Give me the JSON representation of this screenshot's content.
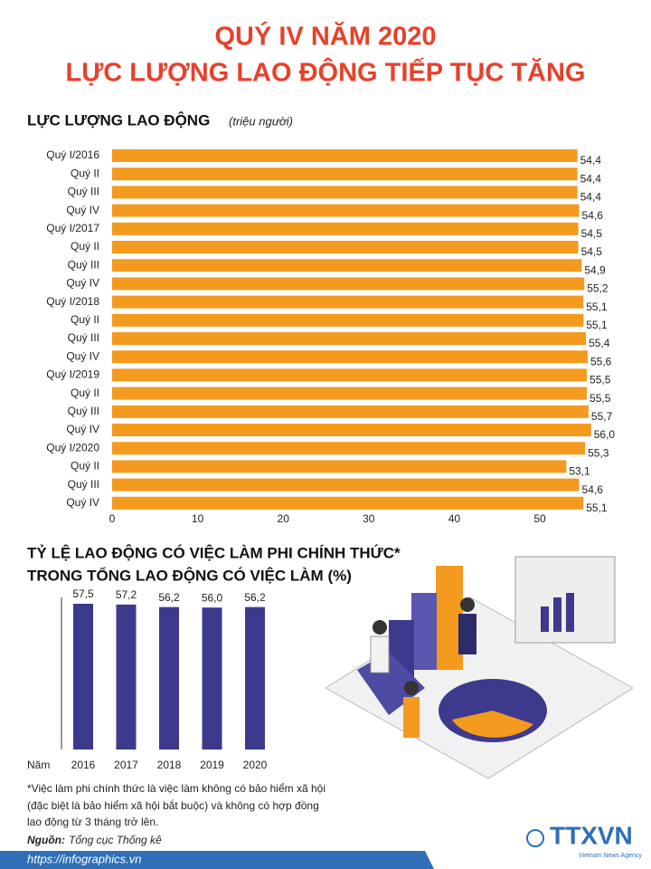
{
  "header": {
    "title_lines": [
      "QUÝ IV NĂM 2020",
      "LỰC LƯỢNG LAO ĐỘNG TIẾP TỤC TĂNG"
    ]
  },
  "chart_data": [
    {
      "type": "barh",
      "title": "LỰC LƯỢNG LAO ĐỘNG",
      "subtitle": "(triệu người)",
      "categories": [
        "Quý I/2016",
        "Quý II",
        "Quý III",
        "Quý IV",
        "Quý I/2017",
        "Quý II",
        "Quý III",
        "Quý IV",
        "Quý I/2018",
        "Quý II",
        "Quý III",
        "Quý IV",
        "Quý I/2019",
        "Quý II",
        "Quý III",
        "Quý IV",
        "Quý I/2020",
        "Quý II",
        "Quý III",
        "Quý IV"
      ],
      "values": [
        54.4,
        54.4,
        54.4,
        54.6,
        54.5,
        54.5,
        54.9,
        55.2,
        55.1,
        55.1,
        55.4,
        55.6,
        55.5,
        55.5,
        55.7,
        56.0,
        55.3,
        53.1,
        54.6,
        55.1
      ],
      "value_labels": [
        "54,4",
        "54,4",
        "54,4",
        "54,6",
        "54,5",
        "54,5",
        "54,9",
        "55,2",
        "55,1",
        "55,1",
        "55,4",
        "55,6",
        "55,5",
        "55,5",
        "55,7",
        "56,0",
        "55,3",
        "53,1",
        "54,6",
        "55,1"
      ],
      "color": "#f49a1f",
      "xlim": [
        0,
        60
      ],
      "xticks": [
        0,
        10,
        20,
        30,
        40,
        50
      ]
    },
    {
      "type": "bar",
      "title_lines": [
        "TỶ LỆ LAO ĐỘNG CÓ VIỆC LÀM PHI CHÍNH THỨC*",
        "TRONG TỔNG LAO ĐỘNG CÓ VIỆC LÀM (%)"
      ],
      "x_label": "Năm",
      "categories": [
        "2016",
        "2017",
        "2018",
        "2019",
        "2020"
      ],
      "values": [
        57.5,
        57.2,
        56.2,
        56.0,
        56.2
      ],
      "value_labels": [
        "57,5",
        "57,2",
        "56,2",
        "56,0",
        "56,2"
      ],
      "color": "#3d3a8e",
      "ylim": [
        0,
        60
      ]
    }
  ],
  "footnote": [
    "*Việc làm phi chính thức là việc làm không có bảo hiểm xã hội",
    "(đặc biệt là bảo hiểm xã hội bắt buộc) và không có hợp đồng",
    "lao động từ 3 tháng trở lên."
  ],
  "source": {
    "label": "Nguồn:",
    "text": "Tổng cục Thống kê"
  },
  "url": "https://infographics.vn",
  "logo": {
    "name": "TTXVN",
    "tagline": "Vietnam News Agency"
  }
}
